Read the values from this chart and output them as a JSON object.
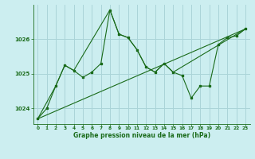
{
  "title": "Graphe pression niveau de la mer (hPa)",
  "background_color": "#cceef0",
  "grid_color": "#aad4d8",
  "line_color": "#1a6b1a",
  "xlim": [
    -0.5,
    23.5
  ],
  "ylim": [
    1023.55,
    1027.0
  ],
  "yticks": [
    1024,
    1025,
    1026
  ],
  "xticks": [
    0,
    1,
    2,
    3,
    4,
    5,
    6,
    7,
    8,
    9,
    10,
    11,
    12,
    13,
    14,
    15,
    16,
    17,
    18,
    19,
    20,
    21,
    22,
    23
  ],
  "series_main": {
    "x": [
      0,
      1,
      2,
      3,
      4,
      5,
      6,
      7,
      8,
      9,
      10,
      11,
      12,
      13,
      14,
      15,
      16,
      17,
      18,
      19,
      20,
      21,
      22,
      23
    ],
    "y": [
      1023.7,
      1024.0,
      1024.65,
      1025.25,
      1025.1,
      1024.9,
      1025.05,
      1025.3,
      1026.85,
      1026.15,
      1026.05,
      1025.7,
      1025.2,
      1025.05,
      1025.3,
      1025.05,
      1024.95,
      1024.3,
      1024.65,
      1024.65,
      1025.85,
      1026.05,
      1026.1,
      1026.3
    ]
  },
  "series_smooth": {
    "x": [
      0,
      2,
      3,
      4,
      8,
      9,
      10,
      11,
      12,
      13,
      14,
      15,
      23
    ],
    "y": [
      1023.7,
      1024.65,
      1025.25,
      1025.1,
      1026.85,
      1026.15,
      1026.05,
      1025.7,
      1025.2,
      1025.05,
      1025.3,
      1025.05,
      1026.3
    ]
  },
  "series_trend": {
    "x": [
      0,
      23
    ],
    "y": [
      1023.7,
      1026.3
    ]
  }
}
